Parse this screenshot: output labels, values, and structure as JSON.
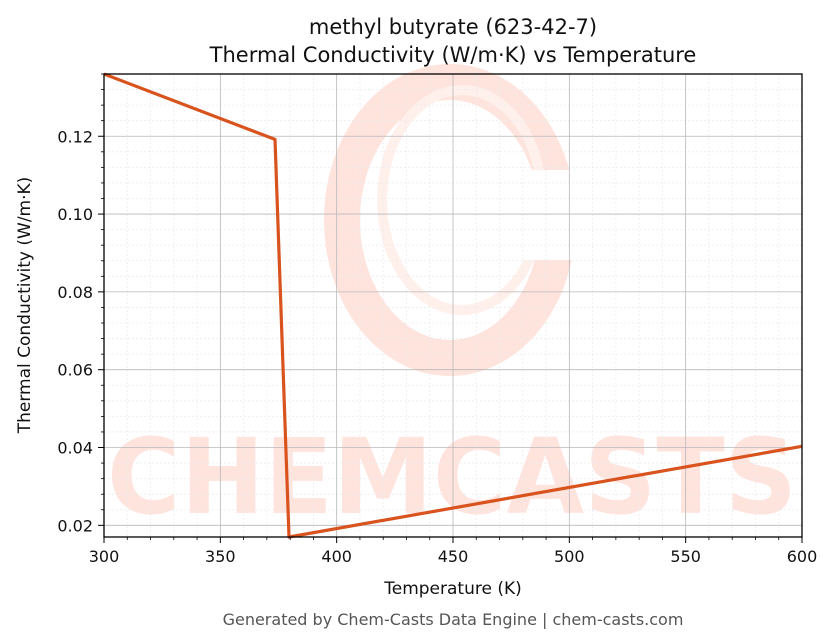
{
  "chart_data": {
    "type": "line",
    "title": "methyl butyrate (623-42-7)",
    "subtitle": "Thermal Conductivity (W/m·K) vs Temperature",
    "xlabel": "Temperature (K)",
    "ylabel": "Thermal Conductivity (W/m·K)",
    "xlim": [
      300,
      600
    ],
    "ylim": [
      0.017,
      0.136
    ],
    "x_ticks": [
      300,
      350,
      400,
      450,
      500,
      550,
      600
    ],
    "y_ticks": [
      0.02,
      0.04,
      0.06,
      0.08,
      0.1,
      0.12
    ],
    "y_tick_labels": [
      "0.02",
      "0.04",
      "0.06",
      "0.08",
      "0.10",
      "0.12"
    ],
    "grid": true,
    "series": [
      {
        "color": "#d9531e",
        "x": [
          300,
          373.5,
          379.5,
          600
        ],
        "y": [
          0.136,
          0.1192,
          0.017,
          0.0403
        ]
      }
    ]
  },
  "watermark": {
    "text": "CHEMCASTS",
    "color": "#ffe3dd"
  },
  "footer": {
    "text": "Generated by Chem-Casts Data Engine | chem-casts.com"
  }
}
